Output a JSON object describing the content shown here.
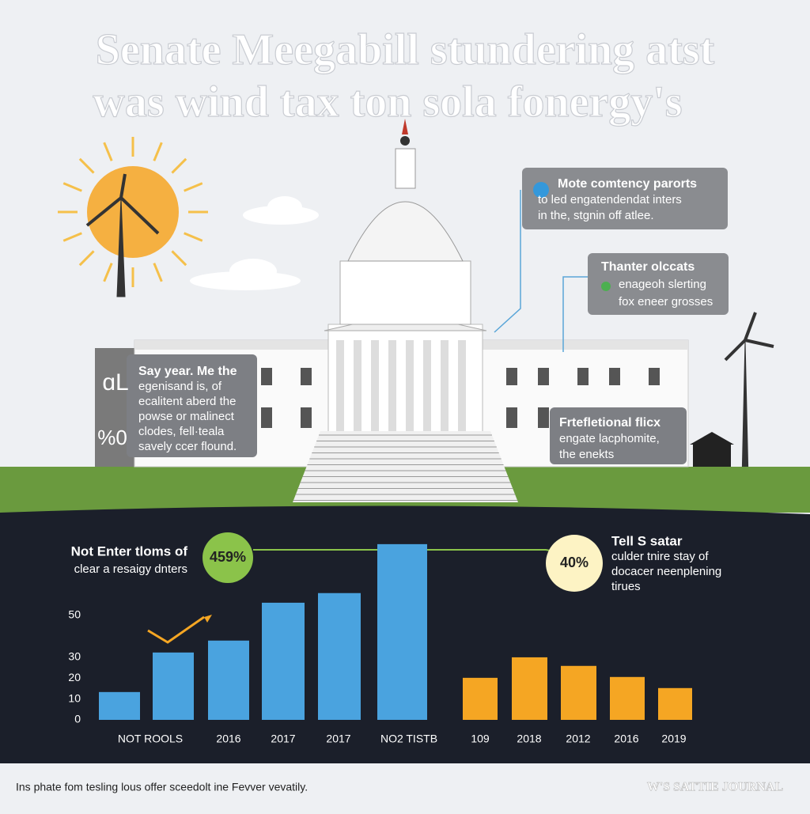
{
  "title": [
    "Senate Meegabill stundering atst",
    "was wind tax ton sola fonergy's"
  ],
  "callouts": [
    {
      "lines": [
        "Mote comtency parorts",
        "to led engatendendat inters",
        "in the, stgnin off atlee."
      ]
    },
    {
      "lines": [
        "Thanter olccats",
        "enageoh slerting",
        "fox eneer grosses"
      ]
    },
    {
      "lines": [
        "Say year. Me the",
        "egenisand is, of",
        "ecalitent aberd the",
        "powse or malinect",
        "clodes, fell·teala",
        "savely ccer flound."
      ]
    },
    {
      "lines": [
        "Frtefletional flicx",
        "engate lacphomite,",
        "the enekts"
      ]
    }
  ],
  "side_marks": [
    "ɑL",
    "%0"
  ],
  "stats": {
    "left": {
      "lines": [
        "Not Enter tloms of",
        "clear a resaigy dnters"
      ],
      "badge": "459%"
    },
    "right": {
      "badge": "40%",
      "lines": [
        "Tell S satar",
        "culder tnire stay of",
        "docacer neenplening",
        "tirues"
      ]
    }
  },
  "chart_data": {
    "type": "bar",
    "categories": [
      null,
      "NOT ROOLS",
      "2016",
      "2017",
      "2017",
      "NO2 TISTB",
      "109",
      "2018",
      "2012",
      "2016",
      "2019"
    ],
    "values": [
      13.3,
      32.2,
      37.9,
      56,
      60.6,
      84,
      20.1,
      29.9,
      25.8,
      20.5,
      15.2
    ],
    "colors": [
      "#4aa3df",
      "#4aa3df",
      "#4aa3df",
      "#4aa3df",
      "#4aa3df",
      "#4aa3df",
      "#f5a623",
      "#f5a623",
      "#f5a623",
      "#f5a623",
      "#f5a623"
    ],
    "ylim": [
      0,
      90
    ],
    "yticks": [
      0,
      10,
      20,
      30,
      50
    ]
  },
  "footer": {
    "caption": "Ins phate fom tesling lous offer sceedolt ine Fevver vevatily.",
    "source": "W'S SATTIE JOURNAL"
  }
}
